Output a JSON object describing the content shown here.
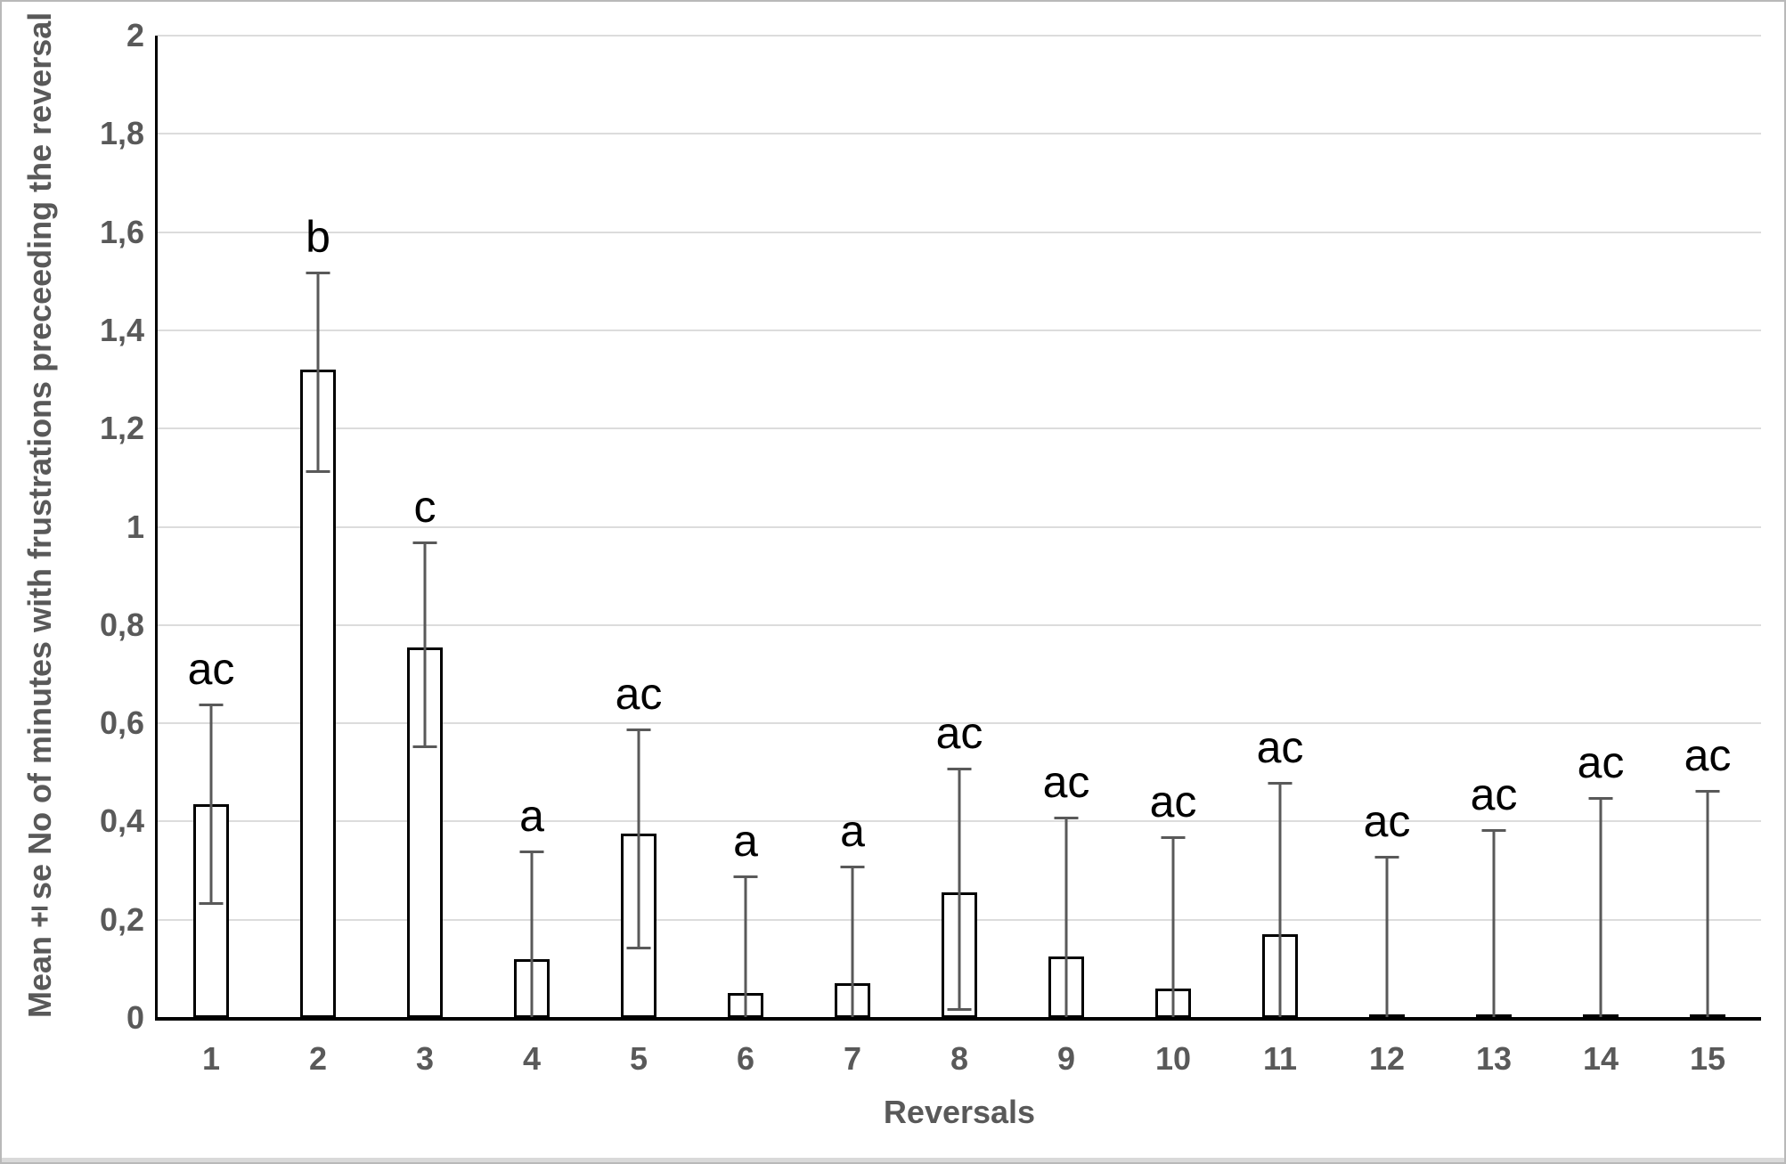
{
  "figure": {
    "kind": "excel-style bar chart with standard-error bars",
    "x_axis_title": "Reversals",
    "y_axis_title": "Mean±se No of minutes with frustrations preceeding the reversal"
  },
  "chart_data": {
    "type": "bar",
    "title": "",
    "xlabel": "Reversals",
    "ylabel": "Mean±se No of minutes with frustrations preceeding the reversal",
    "ylim": [
      0,
      2
    ],
    "grid": true,
    "legend_position": "none",
    "decimal_separator": ",",
    "categories": [
      "1",
      "2",
      "3",
      "4",
      "5",
      "6",
      "7",
      "8",
      "9",
      "10",
      "11",
      "12",
      "13",
      "14",
      "15"
    ],
    "series": [
      {
        "name": "Mean minutes with frustrations preceding the reversal",
        "values": [
          0.435,
          1.32,
          0.755,
          0.12,
          0.375,
          0.05,
          0.07,
          0.255,
          0.125,
          0.06,
          0.17,
          0.006,
          0.005,
          0.005,
          0.005
        ]
      }
    ],
    "error_upper_abs": [
      0.64,
      1.52,
      0.97,
      0.34,
      0.59,
      0.29,
      0.31,
      0.51,
      0.41,
      0.37,
      0.48,
      0.33,
      0.385,
      0.45,
      0.465
    ],
    "error_lower_abs": [
      0.23,
      1.11,
      0.55,
      null,
      0.14,
      null,
      null,
      0.015,
      null,
      null,
      null,
      null,
      null,
      null,
      null
    ],
    "sig_letters": [
      "ac",
      "b",
      "c",
      "a",
      "ac",
      "a",
      "a",
      "ac",
      "ac",
      "ac",
      "ac",
      "ac",
      "ac",
      "ac",
      "ac"
    ],
    "yticks": [
      {
        "value": 0,
        "label": "0"
      },
      {
        "value": 0.2,
        "label": "0,2"
      },
      {
        "value": 0.4,
        "label": "0,4"
      },
      {
        "value": 0.6,
        "label": "0,6"
      },
      {
        "value": 0.8,
        "label": "0,8"
      },
      {
        "value": 1,
        "label": "1"
      },
      {
        "value": 1.2,
        "label": "1,2"
      },
      {
        "value": 1.4,
        "label": "1,4"
      },
      {
        "value": 1.6,
        "label": "1,6"
      },
      {
        "value": 1.8,
        "label": "1,8"
      },
      {
        "value": 2,
        "label": "2"
      }
    ],
    "colors": {
      "bar_fill": "#ffffff",
      "bar_border": "#000000",
      "error_bar": "#595959",
      "gridline": "#dcdcdc",
      "axis_line": "#000000",
      "axis_text": "#595959",
      "letter_text": "#000000",
      "figure_border": "#b9b9b9",
      "bottom_strip": "#d9d9d9"
    }
  }
}
